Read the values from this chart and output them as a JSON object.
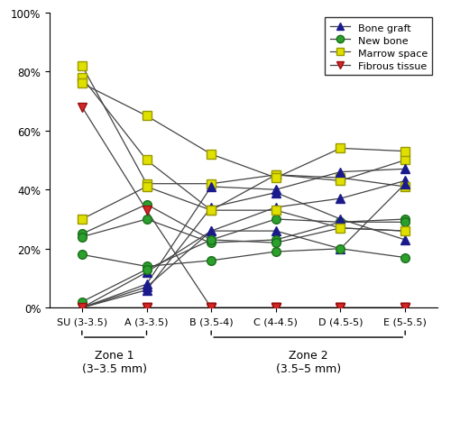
{
  "x_labels": [
    "SU (3-3.5)",
    "A (3-3.5)",
    "B (3.5-4)",
    "C (4-4.5)",
    "D (4.5-5)",
    "E (5-5.5)"
  ],
  "x_positions": [
    0,
    1,
    2,
    3,
    4,
    5
  ],
  "bone_graft": [
    [
      0.0,
      0.12,
      0.26,
      0.34,
      0.37,
      0.43
    ],
    [
      0.0,
      0.07,
      0.26,
      0.26,
      0.2,
      0.42
    ],
    [
      0.0,
      0.08,
      0.41,
      0.4,
      0.46,
      0.47
    ],
    [
      0.0,
      0.06,
      0.34,
      0.39,
      0.3,
      0.23
    ]
  ],
  "new_bone": [
    [
      0.25,
      0.35,
      0.23,
      0.3,
      0.29,
      0.3
    ],
    [
      0.24,
      0.3,
      0.22,
      0.23,
      0.29,
      0.29
    ],
    [
      0.18,
      0.14,
      0.16,
      0.19,
      0.2,
      0.17
    ],
    [
      0.02,
      0.13,
      0.23,
      0.22,
      0.27,
      0.26
    ]
  ],
  "marrow_space": [
    [
      0.82,
      0.42,
      0.42,
      0.45,
      0.44,
      0.41
    ],
    [
      0.78,
      0.5,
      0.33,
      0.45,
      0.43,
      0.5
    ],
    [
      0.76,
      0.65,
      0.52,
      0.44,
      0.54,
      0.53
    ],
    [
      0.3,
      0.41,
      0.33,
      0.33,
      0.27,
      0.26
    ]
  ],
  "fibrous_tissue": [
    [
      0.0,
      0.0,
      0.0,
      0.0,
      0.0,
      0.0
    ],
    [
      0.0,
      0.0,
      0.0,
      0.0,
      0.0,
      0.0
    ],
    [
      0.68,
      0.33,
      0.0,
      0.0,
      0.0,
      0.0
    ],
    [
      0.0,
      0.0,
      0.0,
      0.0,
      0.0,
      0.0
    ]
  ],
  "bone_graft_color": "#1a1a8c",
  "new_bone_color": "#2ca02c",
  "marrow_space_color": "#e0e000",
  "marrow_space_edge_color": "#999900",
  "fibrous_tissue_color": "#d62728",
  "line_color": "#444444",
  "ylim": [
    0,
    1.0
  ],
  "yticks": [
    0.0,
    0.2,
    0.4,
    0.6,
    0.8,
    1.0
  ],
  "ytick_labels": [
    "0%",
    "20%",
    "40%",
    "60%",
    "80%",
    "100%"
  ],
  "zone1_label": "Zone 1\n(3–3.5 mm)",
  "zone2_label": "Zone 2\n(3.5–5 mm)"
}
